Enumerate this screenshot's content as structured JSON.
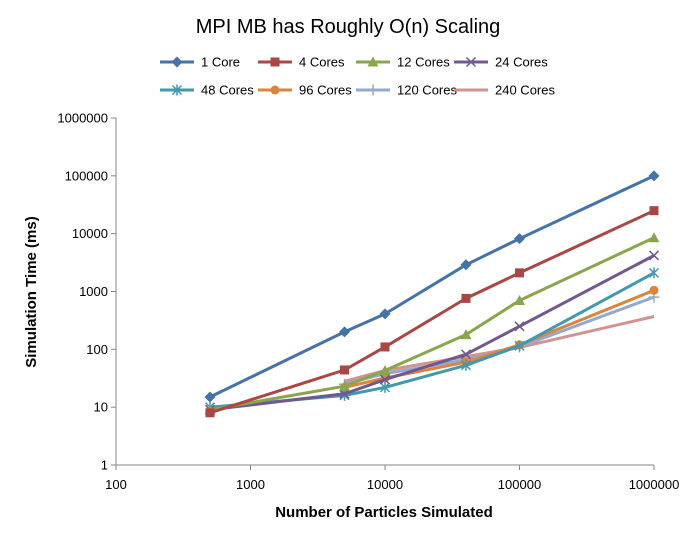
{
  "chart_data": {
    "type": "line",
    "title": "MPI MB has Roughly O(n) Scaling",
    "xlabel": "Number of Particles Simulated",
    "ylabel": "Simulation Time (ms)",
    "x_scale": "log",
    "y_scale": "log",
    "xlim": [
      100,
      1000000
    ],
    "ylim": [
      1,
      1000000
    ],
    "x_ticks": [
      "100",
      "1000",
      "10000",
      "100000",
      "1000000"
    ],
    "y_ticks": [
      "1",
      "10",
      "100",
      "1000",
      "10000",
      "100000",
      "1000000"
    ],
    "grid": false,
    "legend_position": "top",
    "series": [
      {
        "name": "1 Core",
        "color": "#4572A7",
        "marker": "diamond",
        "x": [
          500,
          5000,
          10000,
          40000,
          100000,
          1000000
        ],
        "values": [
          15,
          200,
          410,
          2900,
          8200,
          100000
        ]
      },
      {
        "name": "4 Cores",
        "color": "#AA4643",
        "marker": "square",
        "x": [
          500,
          5000,
          10000,
          40000,
          100000,
          1000000
        ],
        "values": [
          8,
          44,
          110,
          760,
          2100,
          25000
        ]
      },
      {
        "name": "12 Cores",
        "color": "#89A54E",
        "marker": "triangle",
        "x": [
          500,
          5000,
          10000,
          40000,
          100000,
          1000000
        ],
        "values": [
          9,
          23,
          43,
          180,
          700,
          8500
        ]
      },
      {
        "name": "24 Cores",
        "color": "#71588F",
        "marker": "x",
        "x": [
          500,
          5000,
          10000,
          40000,
          100000,
          1000000
        ],
        "values": [
          9,
          17,
          30,
          82,
          250,
          4200
        ]
      },
      {
        "name": "48 Cores",
        "color": "#4198AF",
        "marker": "star",
        "x": [
          500,
          5000,
          10000,
          40000,
          100000,
          1000000
        ],
        "values": [
          10,
          16,
          22,
          53,
          115,
          2100
        ]
      },
      {
        "name": "96 Cores",
        "color": "#DB843D",
        "marker": "circle",
        "x": [
          5000,
          10000,
          40000,
          100000,
          1000000
        ],
        "values": [
          22,
          32,
          60,
          120,
          1050
        ]
      },
      {
        "name": "120 Cores",
        "color": "#93A9CF",
        "marker": "plus",
        "x": [
          5000,
          10000,
          40000,
          100000,
          1000000
        ],
        "values": [
          25,
          38,
          66,
          110,
          800
        ]
      },
      {
        "name": "240 Cores",
        "color": "#D19392",
        "marker": "none",
        "x": [
          5000,
          10000,
          40000,
          100000,
          1000000
        ],
        "values": [
          28,
          43,
          75,
          108,
          370
        ]
      }
    ]
  }
}
